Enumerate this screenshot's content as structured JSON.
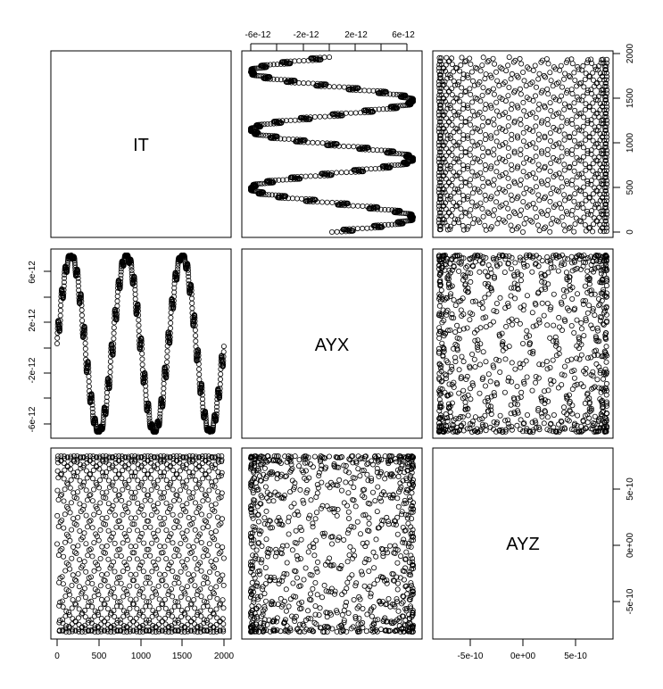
{
  "chart_data": {
    "type": "scatter",
    "subtype": "pairs-matrix",
    "variables": [
      "IT",
      "AYX",
      "AYZ"
    ],
    "n_points": 2000,
    "point_style": "open-circle",
    "variable_ranges": {
      "IT": [
        0,
        2000
      ],
      "AYX": [
        -8e-12,
        8e-12
      ],
      "AYZ": [
        -8e-10,
        8e-10
      ]
    },
    "axes": {
      "top": {
        "variable": "AYX",
        "ticks": [
          -6e-12,
          -2e-12,
          2e-12,
          6e-12
        ],
        "labels": [
          "-6e-12",
          "-2e-12",
          "2e-12",
          "6e-12"
        ]
      },
      "right_top": {
        "variable": "IT",
        "ticks": [
          0,
          500,
          1000,
          1500,
          2000
        ],
        "labels": [
          "0",
          "500",
          "1000",
          "1500",
          "2000"
        ]
      },
      "left_middle": {
        "variable": "AYX",
        "ticks": [
          -6e-12,
          -2e-12,
          2e-12,
          6e-12
        ],
        "labels": [
          "-6e-12",
          "-2e-12",
          "2e-12",
          "6e-12"
        ]
      },
      "bottom": {
        "variable": "IT",
        "ticks": [
          0,
          500,
          1000,
          1500,
          2000
        ],
        "labels": [
          "0",
          "500",
          "1000",
          "1500",
          "2000"
        ]
      },
      "right_bottom": {
        "variable": "AYZ",
        "ticks": [
          -5e-10,
          0,
          5e-10
        ],
        "labels": [
          "-5e-10",
          "0e+00",
          "5e-10"
        ]
      },
      "bottom_right": {
        "variable": "AYZ",
        "ticks": [
          -5e-10,
          0,
          5e-10
        ],
        "labels": [
          "-5e-10",
          "0e+00",
          "5e-10"
        ]
      }
    },
    "series_model": {
      "AYX": {
        "amplitude": 8e-12,
        "cycles_over_IT": 3
      },
      "AYZ": {
        "amplitude": 8e-10,
        "cycles_over_IT": 52
      }
    }
  }
}
